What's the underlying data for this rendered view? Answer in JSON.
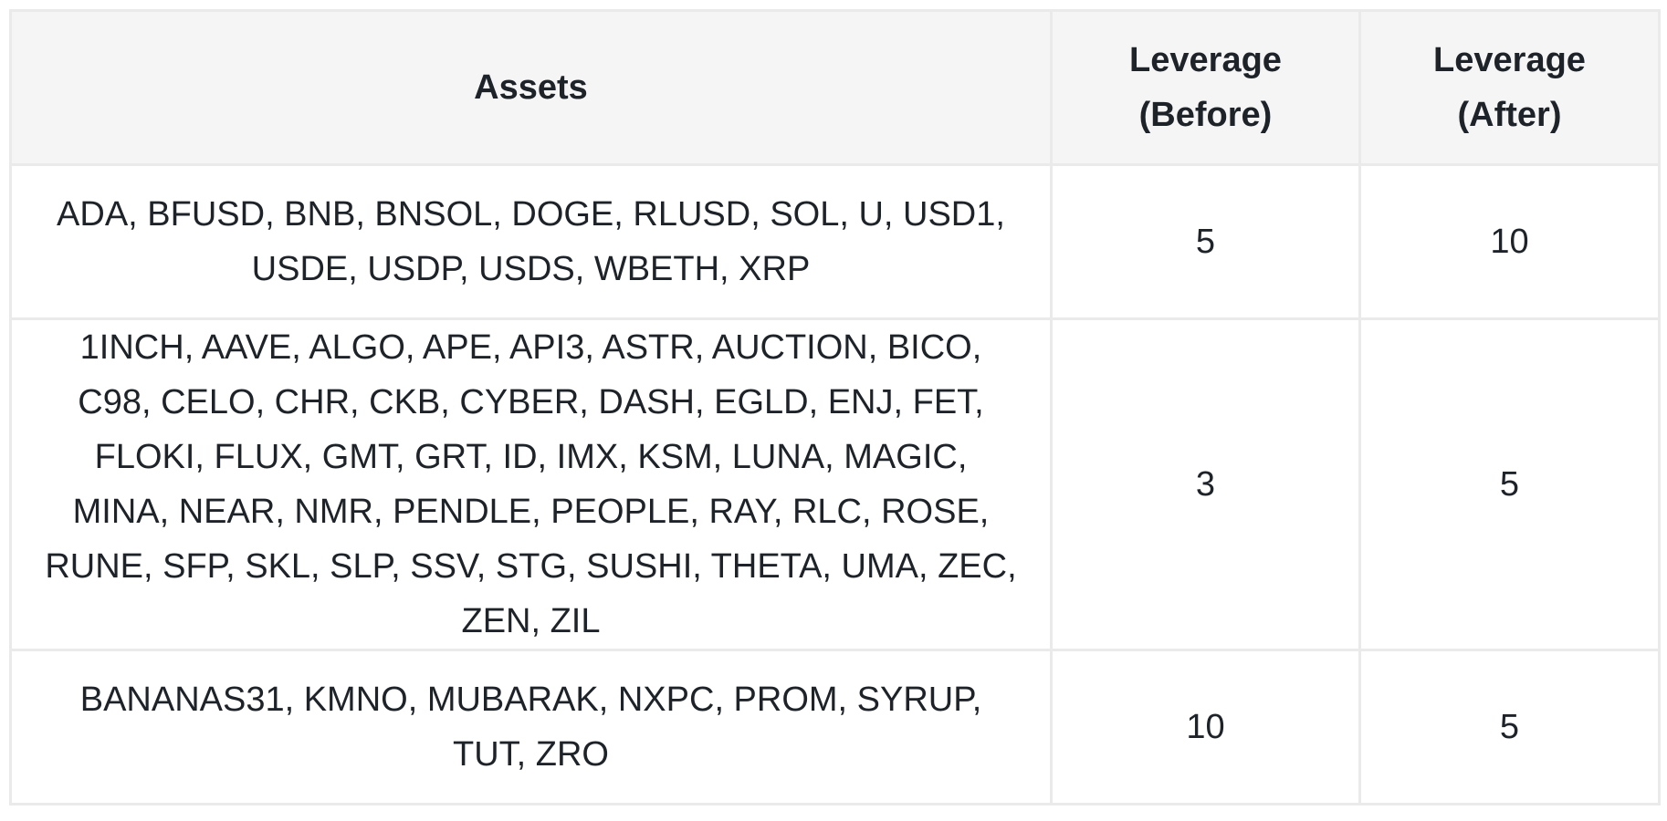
{
  "table": {
    "headers": {
      "assets": "Assets",
      "leverage_before_line1": "Leverage",
      "leverage_before_line2": "(Before)",
      "leverage_after_line1": "Leverage",
      "leverage_after_line2": "(After)"
    },
    "rows": [
      {
        "assets": "ADA, BFUSD, BNB, BNSOL, DOGE, RLUSD, SOL, U, USD1, USDE, USDP, USDS, WBETH, XRP",
        "leverage_before": "5",
        "leverage_after": "10"
      },
      {
        "assets": "1INCH, AAVE, ALGO, APE, API3, ASTR, AUCTION, BICO, C98, CELO, CHR, CKB, CYBER, DASH, EGLD, ENJ, FET, FLOKI, FLUX, GMT, GRT, ID, IMX, KSM, LUNA, MAGIC, MINA, NEAR, NMR, PENDLE, PEOPLE, RAY, RLC, ROSE, RUNE, SFP, SKL, SLP, SSV, STG, SUSHI, THETA, UMA, ZEC, ZEN, ZIL",
        "leverage_before": "3",
        "leverage_after": "5"
      },
      {
        "assets": "BANANAS31, KMNO, MUBARAK, NXPC, PROM, SYRUP, TUT, ZRO",
        "leverage_before": "10",
        "leverage_after": "5"
      }
    ]
  }
}
